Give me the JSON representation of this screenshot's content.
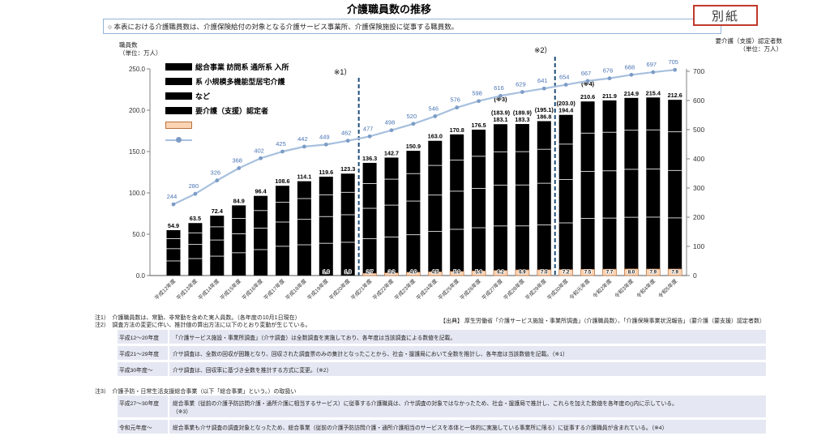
{
  "page": {
    "title": "介護職員数の推移",
    "attachment_label": "別紙",
    "note": "○ 本表における介護職員数は、介護保険給付の対象となる介護サービス事業所、介護保険施設に従事する職員数。"
  },
  "chart_data": {
    "type": "bar+line",
    "title": "介護職員数の推移",
    "categories": [
      "平成12年度",
      "平成13年度",
      "平成14年度",
      "平成15年度",
      "平成16年度",
      "平成17年度",
      "平成18年度",
      "平成19年度",
      "平成20年度",
      "平成21年度",
      "平成22年度",
      "平成23年度",
      "平成24年度",
      "平成25年度",
      "平成26年度",
      "平成27年度",
      "平成28年度",
      "平成29年度",
      "平成30年度",
      "令和元年度",
      "令和2年度",
      "令和3年度",
      "令和4年度",
      "令和5年度"
    ],
    "series": [
      {
        "name": "介護職員数（総合事業 訪問系 通所系 入所系 小規模多機能型居宅介護 など）",
        "type": "bar",
        "labels": [
          "54.9",
          "63.5",
          "72.4",
          "84.9",
          "96.4",
          "108.6",
          "114.1",
          "119.6",
          "123.3",
          "136.3",
          "142.7",
          "150.9",
          "163.0",
          "170.8",
          "176.5",
          "183.1",
          "183.3",
          "186.8",
          "194.4",
          "210.6",
          "211.9",
          "214.9",
          "215.4",
          "212.6"
        ],
        "paren_labels": [
          null,
          null,
          null,
          null,
          null,
          null,
          null,
          null,
          null,
          null,
          null,
          null,
          null,
          null,
          null,
          "(183.9)",
          "(189.9)",
          "(195.1)",
          "(203.0)",
          null,
          null,
          null,
          null,
          null
        ],
        "bottom_segment_labels": [
          null,
          null,
          null,
          null,
          null,
          null,
          null,
          "1.6",
          "1.8",
          "2.7",
          "3.2",
          "4.0",
          "4.5",
          "5.0",
          "5.6",
          "6.2",
          "6.9",
          "7.0",
          "7.2",
          "7.5",
          "7.7",
          "8.0",
          "7.9",
          "7.9"
        ],
        "peach_from_index": 9
      },
      {
        "name": "要介護（支援）認定者",
        "type": "line",
        "values": [
          244,
          280,
          326,
          368,
          402,
          425,
          442,
          449,
          462,
          477,
          498,
          520,
          546,
          576,
          598,
          616,
          629,
          641,
          654,
          667,
          676,
          688,
          697,
          705
        ]
      }
    ],
    "left_axis": {
      "title": "職員数\n（単位：万人）",
      "ticks": [
        "250.0",
        "200.0",
        "150.0",
        "100.0",
        "50.0",
        "0.0"
      ],
      "max": 250
    },
    "right_axis": {
      "title": "要介護（支援）認定者数\n（単位：万人）",
      "ticks": [
        "700",
        "600",
        "500",
        "400",
        "300",
        "200",
        "100",
        "0"
      ],
      "max": 700
    },
    "dashed_lines": [
      {
        "label": "※1）",
        "after_index": 8,
        "line_top": 52,
        "label_dx": -20,
        "label_y": 48
      },
      {
        "label": "※2）",
        "after_index": 17,
        "line_top": 26,
        "label_dx": -15,
        "label_y": 21
      }
    ],
    "point_notes": [
      {
        "label": "(※3)",
        "index": 15
      },
      {
        "label": "(※4)",
        "index": 19
      }
    ],
    "legend": [
      {
        "swatch": "bar",
        "label": "総合事業 訪問系 通所系 入所"
      },
      {
        "swatch": "bar",
        "label": "系 小規模多機能型居宅介護"
      },
      {
        "swatch": "bar",
        "label": "など"
      },
      {
        "swatch": "bar",
        "label": "要介護（支援）認定者"
      },
      {
        "swatch": "peach",
        "label": ""
      },
      {
        "swatch": "line",
        "label": ""
      }
    ],
    "colors": {
      "bar": "#000000",
      "peach_fill": "#fbd4b4",
      "peach_border": "#b8713f",
      "line": "#a7c0de",
      "marker": "#7c9cc6",
      "line_label": "#4a74b4",
      "dashed": "#1f4e79",
      "axis": "#808080"
    }
  },
  "footnotes": {
    "note1": "注1）　介護職員数は、常勤、非常勤を含めた実人員数。（各年度の10月1日現在）",
    "note2": "注2）　調査方法の変更に伴い、推計値の算出方法に以下のとおり変動が生じている。",
    "source": "【出典】 厚生労働省「介護サービス施設・事業所調査」（介護職員数）、「介護保険事業状況報告」（要介護（要支援）認定者数）",
    "table1": {
      "rows": [
        {
          "label": "平成12〜20年度",
          "text": "「介護サービス施設・事業所調査」（介サ調査）は全数調査を実施しており、各年度は当該調査による数値を記載。"
        },
        {
          "label": "平成21〜29年度",
          "text": "介サ調査は、全数の回収が困難となり、回収された調査票のみの集計となったことから、社会・援護局において全数を推計し、各年度は当該数値を記載。（※1）"
        },
        {
          "label": "平成30年度〜",
          "text": "介サ調査は、回収率に基づき全数を推計する方式に変更。（※2）"
        }
      ]
    },
    "note3": "注3）　介護予防・日常生活支援総合事業（以下「総合事業」という。）の取扱い",
    "table2": {
      "rows": [
        {
          "label": "平成27〜30年度",
          "text": "総合事業（従前の介護予防訪問介護・通所介護に相当するサービス）に従事する介護職員は、介サ調査の対象ではなかったため、社会・援護局で推計し、これらを加えた数値を各年度の()内に示している。\n（※3）"
        },
        {
          "label": "令和元年度〜",
          "text": "総合事業も介サ調査の調査対象となったため、総合事業（従前の介護予防訪問介護・通所介護相当のサービスを本体と一体的に実施している事業所に限る）に従事する介護職員が含まれている。（※4）"
        }
      ]
    }
  }
}
